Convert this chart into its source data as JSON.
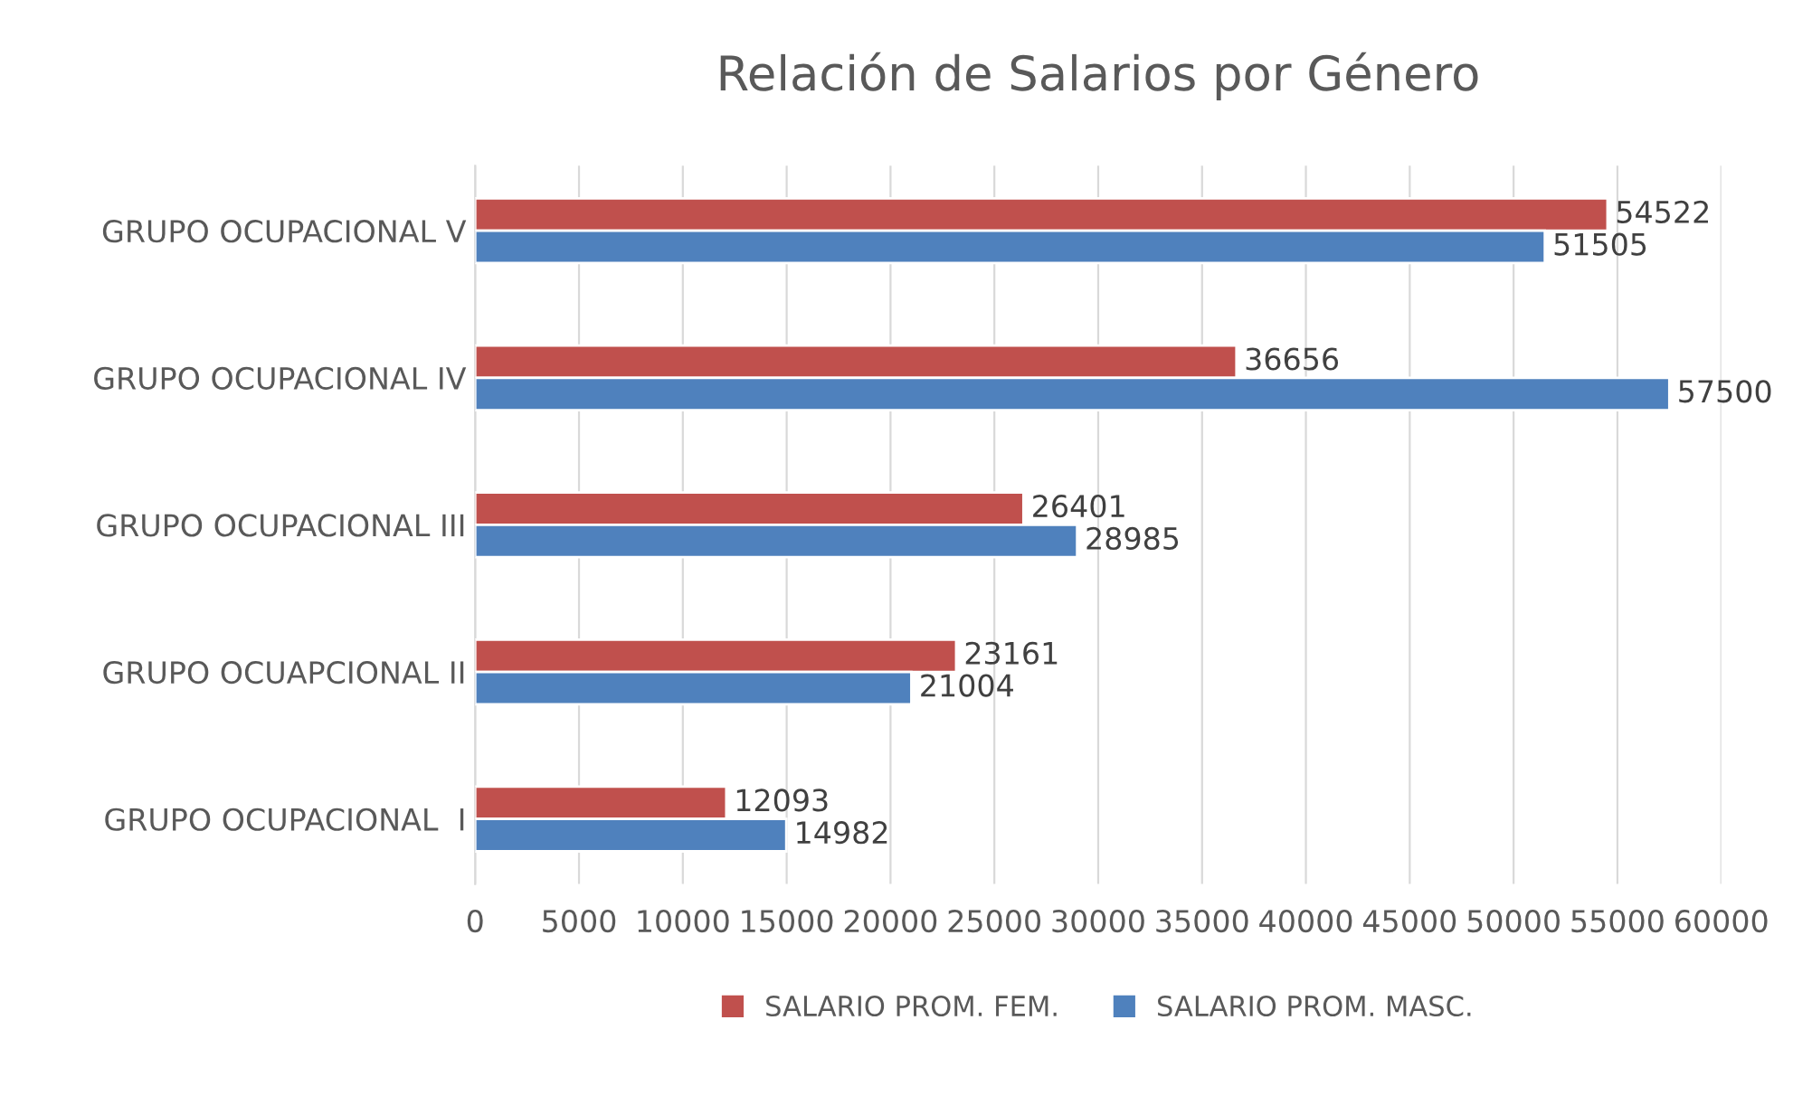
{
  "chart_data": {
    "type": "bar",
    "orientation": "horizontal",
    "title": "Relación de Salarios por Género",
    "categories": [
      "GRUPO OCUPACIONAL V",
      "GRUPO OCUPACIONAL IV",
      "GRUPO OCUPACIONAL III",
      "GRUPO OCUAPCIONAL II",
      "GRUPO OCUPACIONAL  I"
    ],
    "series": [
      {
        "name": "SALARIO PROM. FEM.",
        "color": "#c0504d",
        "values": [
          54522,
          36656,
          26401,
          23161,
          12093
        ]
      },
      {
        "name": "SALARIO PROM. MASC.",
        "color": "#4f81bd",
        "values": [
          51505,
          57500,
          28985,
          21004,
          14982
        ]
      }
    ],
    "xlim": [
      0,
      60000
    ],
    "xticks": [
      0,
      5000,
      10000,
      15000,
      20000,
      25000,
      30000,
      35000,
      40000,
      45000,
      50000,
      55000,
      60000
    ],
    "grid": "x",
    "legend": "bottom",
    "data_labels": true
  }
}
